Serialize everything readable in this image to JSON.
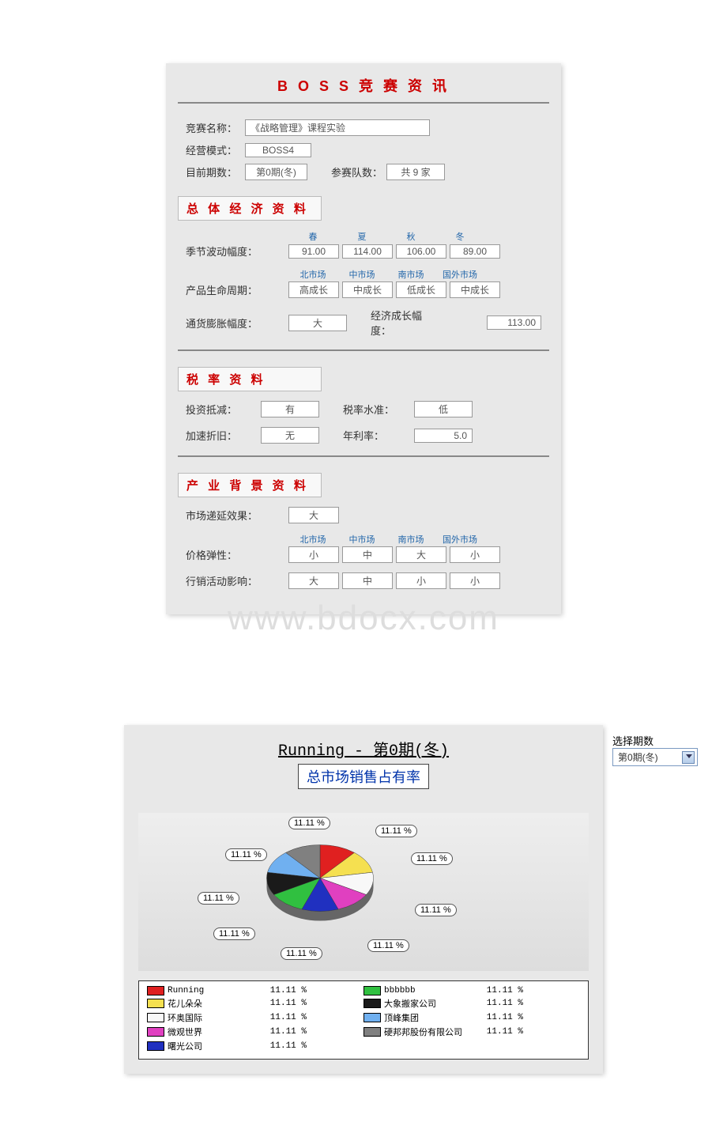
{
  "watermark": "www.bdocx.com",
  "panel1": {
    "title": "B O S S   竞 赛 资 讯",
    "rows": {
      "competition_name_label": "竞赛名称：",
      "competition_name_value": "《战略管理》课程实验",
      "mode_label": "经营模式：",
      "mode_value": "BOSS4",
      "period_label": "目前期数：",
      "period_value": "第0期(冬)",
      "teams_label": "参赛队数：",
      "teams_value": "共 9 家"
    },
    "section_economy": {
      "heading": "总 体 经 济 资 料",
      "season_label": "季节波动幅度：",
      "season_headers": [
        "春",
        "夏",
        "秋",
        "冬"
      ],
      "season_values": [
        "91.00",
        "114.00",
        "106.00",
        "89.00"
      ],
      "lifecycle_label": "产品生命周期：",
      "market_headers": [
        "北市场",
        "中市场",
        "南市场",
        "国外市场"
      ],
      "lifecycle_values": [
        "高成长",
        "中成长",
        "低成长",
        "中成长"
      ],
      "inflation_label": "通货膨胀幅度：",
      "inflation_value": "大",
      "growth_label": "经济成长幅度：",
      "growth_value": "113.00"
    },
    "section_tax": {
      "heading": "税 率 资 料",
      "invest_label": "投资抵减：",
      "invest_value": "有",
      "rate_level_label": "税率水准：",
      "rate_level_value": "低",
      "accel_label": "加速折旧：",
      "accel_value": "无",
      "interest_label": "年利率：",
      "interest_value": "5.0"
    },
    "section_industry": {
      "heading": "产 业 背 景 资 料",
      "delay_label": "市场递延效果：",
      "delay_value": "大",
      "market_headers": [
        "北市场",
        "中市场",
        "南市场",
        "国外市场"
      ],
      "elasticity_label": "价格弹性：",
      "elasticity_values": [
        "小",
        "中",
        "大",
        "小"
      ],
      "marketing_label": "行销活动影响：",
      "marketing_values": [
        "大",
        "中",
        "小",
        "小"
      ]
    }
  },
  "panel2": {
    "title": "Running - 第0期(冬)",
    "subtitle": "总市场销售占有率",
    "select_label": "选择期数",
    "select_value": "第0期(冬)",
    "pie": {
      "type": "pie",
      "bubble_text": "11.11 %",
      "legend_pct": "11.11 %",
      "slices": [
        {
          "name": "Running",
          "color": "#e02020"
        },
        {
          "name": "花儿朵朵",
          "color": "#f5e050"
        },
        {
          "name": "环奥国际",
          "color": "#f8f8f8"
        },
        {
          "name": "微观世界",
          "color": "#e040c0"
        },
        {
          "name": "曙光公司",
          "color": "#2030c0"
        },
        {
          "name": "bbbbbb",
          "color": "#30c040"
        },
        {
          "name": "大象搬家公司",
          "color": "#1a1a1a"
        },
        {
          "name": "顶峰集团",
          "color": "#70b0f0"
        },
        {
          "name": "硬邦邦股份有限公司",
          "color": "#808080"
        }
      ],
      "background_color": "#e0e0e0"
    }
  }
}
